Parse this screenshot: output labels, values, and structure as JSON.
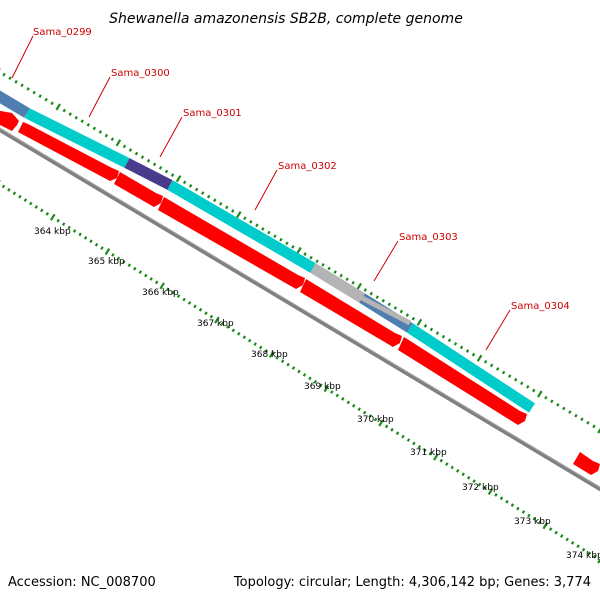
{
  "title": "Shewanella amazonensis SB2B, complete genome",
  "footer": {
    "accession": "Accession: NC_008700",
    "summary": "Topology: circular; Length: 4,306,142 bp; Genes: 3,774"
  },
  "gene_labels": [
    "Sama_0299",
    "Sama_0300",
    "Sama_0301",
    "Sama_0302",
    "Sama_0303",
    "Sama_0304"
  ],
  "kbp_labels": [
    "364 kbp",
    "365 kbp",
    "366 kbp",
    "367 kbp",
    "368 kbp",
    "369 kbp",
    "370 kbp",
    "371 kbp",
    "372 kbp",
    "373 kbp",
    "374 kbp"
  ],
  "colors": {
    "cds_forward": "#ff0000",
    "cog_cyan": "#00cccc",
    "cog_purple": "#4a3a8c",
    "cog_steelblue": "#4f7fb0",
    "cog_gray": "#b4b4b4",
    "backbone": "#808080",
    "ticks": "#1a8a1a",
    "label_line": "#cc0000"
  }
}
